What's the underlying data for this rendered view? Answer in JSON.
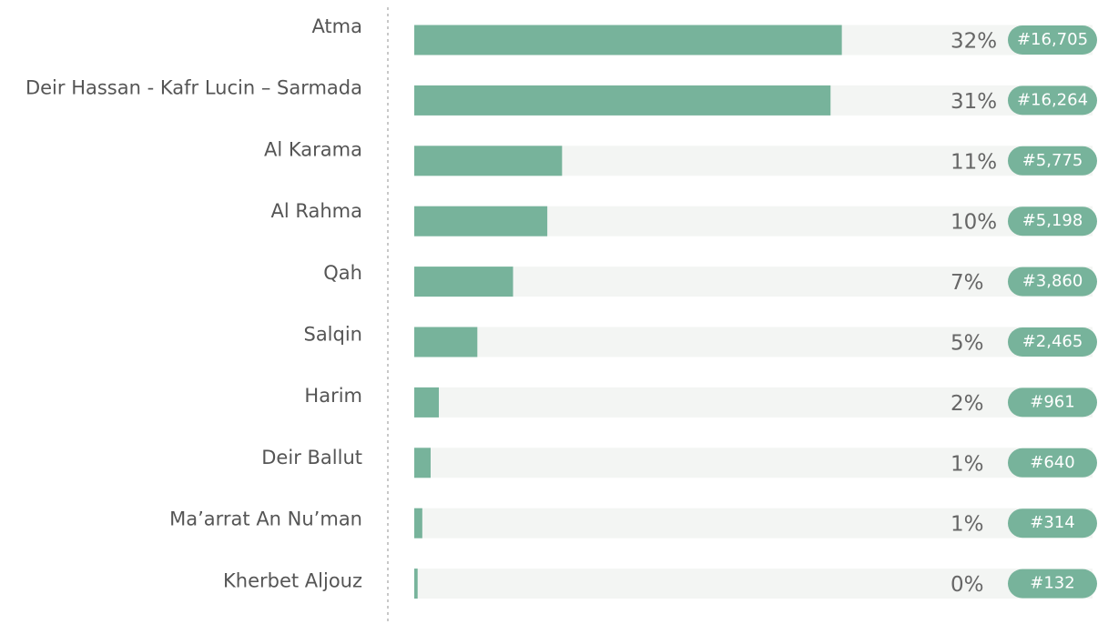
{
  "chart_data": {
    "type": "bar",
    "orientation": "horizontal",
    "categories": [
      "Atma",
      "Deir Hassan - Kafr Lucin – Sarmada",
      "Al Karama",
      "Al Rahma",
      "Qah",
      "Salqin",
      "Harim",
      "Deir Ballut",
      "Ma’arrat An Nu’man",
      "Kherbet Aljouz"
    ],
    "values": [
      16705,
      16264,
      5775,
      5198,
      3860,
      2465,
      961,
      640,
      314,
      132
    ],
    "value_labels": [
      "#16,705",
      "#16,264",
      "#5,775",
      "#5,198",
      "#3,860",
      "#2,465",
      "#961",
      "#640",
      "#314",
      "#132"
    ],
    "shares": [
      32,
      31,
      11,
      10,
      7,
      5,
      2,
      1,
      1,
      0
    ],
    "share_labels": [
      "32%",
      "31%",
      "11%",
      "10%",
      "7%",
      "5%",
      "2%",
      "1%",
      "1%",
      "0%"
    ],
    "color": "#77b39b",
    "xlim": [
      0,
      26500
    ]
  }
}
